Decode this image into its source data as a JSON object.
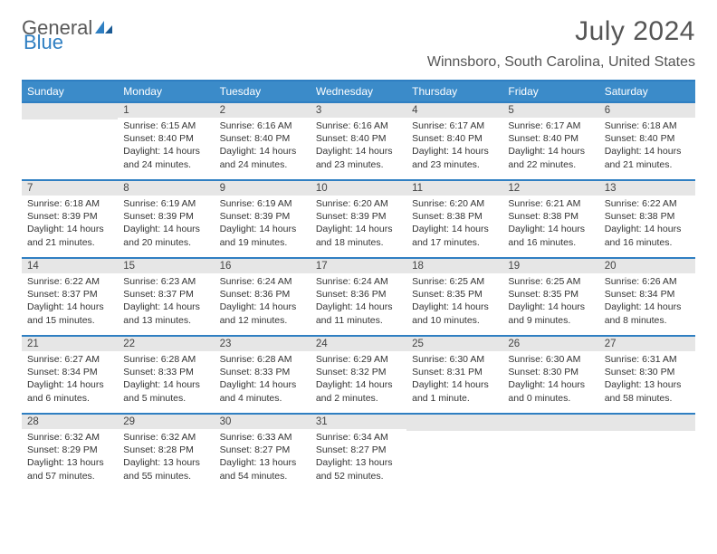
{
  "logo": {
    "text_gray": "General",
    "text_blue": "Blue"
  },
  "header": {
    "month_title": "July 2024",
    "location": "Winnsboro, South Carolina, United States"
  },
  "style": {
    "header_bg": "#3b8bc9",
    "header_border": "#2f7fc2",
    "daynum_bg": "#e6e6e6",
    "text_color": "#333333",
    "title_color": "#555555"
  },
  "weekdays": [
    "Sunday",
    "Monday",
    "Tuesday",
    "Wednesday",
    "Thursday",
    "Friday",
    "Saturday"
  ],
  "weeks": [
    [
      {
        "n": "",
        "sunrise": "",
        "sunset": "",
        "daylight": ""
      },
      {
        "n": "1",
        "sunrise": "6:15 AM",
        "sunset": "8:40 PM",
        "daylight": "14 hours and 24 minutes."
      },
      {
        "n": "2",
        "sunrise": "6:16 AM",
        "sunset": "8:40 PM",
        "daylight": "14 hours and 24 minutes."
      },
      {
        "n": "3",
        "sunrise": "6:16 AM",
        "sunset": "8:40 PM",
        "daylight": "14 hours and 23 minutes."
      },
      {
        "n": "4",
        "sunrise": "6:17 AM",
        "sunset": "8:40 PM",
        "daylight": "14 hours and 23 minutes."
      },
      {
        "n": "5",
        "sunrise": "6:17 AM",
        "sunset": "8:40 PM",
        "daylight": "14 hours and 22 minutes."
      },
      {
        "n": "6",
        "sunrise": "6:18 AM",
        "sunset": "8:40 PM",
        "daylight": "14 hours and 21 minutes."
      }
    ],
    [
      {
        "n": "7",
        "sunrise": "6:18 AM",
        "sunset": "8:39 PM",
        "daylight": "14 hours and 21 minutes."
      },
      {
        "n": "8",
        "sunrise": "6:19 AM",
        "sunset": "8:39 PM",
        "daylight": "14 hours and 20 minutes."
      },
      {
        "n": "9",
        "sunrise": "6:19 AM",
        "sunset": "8:39 PM",
        "daylight": "14 hours and 19 minutes."
      },
      {
        "n": "10",
        "sunrise": "6:20 AM",
        "sunset": "8:39 PM",
        "daylight": "14 hours and 18 minutes."
      },
      {
        "n": "11",
        "sunrise": "6:20 AM",
        "sunset": "8:38 PM",
        "daylight": "14 hours and 17 minutes."
      },
      {
        "n": "12",
        "sunrise": "6:21 AM",
        "sunset": "8:38 PM",
        "daylight": "14 hours and 16 minutes."
      },
      {
        "n": "13",
        "sunrise": "6:22 AM",
        "sunset": "8:38 PM",
        "daylight": "14 hours and 16 minutes."
      }
    ],
    [
      {
        "n": "14",
        "sunrise": "6:22 AM",
        "sunset": "8:37 PM",
        "daylight": "14 hours and 15 minutes."
      },
      {
        "n": "15",
        "sunrise": "6:23 AM",
        "sunset": "8:37 PM",
        "daylight": "14 hours and 13 minutes."
      },
      {
        "n": "16",
        "sunrise": "6:24 AM",
        "sunset": "8:36 PM",
        "daylight": "14 hours and 12 minutes."
      },
      {
        "n": "17",
        "sunrise": "6:24 AM",
        "sunset": "8:36 PM",
        "daylight": "14 hours and 11 minutes."
      },
      {
        "n": "18",
        "sunrise": "6:25 AM",
        "sunset": "8:35 PM",
        "daylight": "14 hours and 10 minutes."
      },
      {
        "n": "19",
        "sunrise": "6:25 AM",
        "sunset": "8:35 PM",
        "daylight": "14 hours and 9 minutes."
      },
      {
        "n": "20",
        "sunrise": "6:26 AM",
        "sunset": "8:34 PM",
        "daylight": "14 hours and 8 minutes."
      }
    ],
    [
      {
        "n": "21",
        "sunrise": "6:27 AM",
        "sunset": "8:34 PM",
        "daylight": "14 hours and 6 minutes."
      },
      {
        "n": "22",
        "sunrise": "6:28 AM",
        "sunset": "8:33 PM",
        "daylight": "14 hours and 5 minutes."
      },
      {
        "n": "23",
        "sunrise": "6:28 AM",
        "sunset": "8:33 PM",
        "daylight": "14 hours and 4 minutes."
      },
      {
        "n": "24",
        "sunrise": "6:29 AM",
        "sunset": "8:32 PM",
        "daylight": "14 hours and 2 minutes."
      },
      {
        "n": "25",
        "sunrise": "6:30 AM",
        "sunset": "8:31 PM",
        "daylight": "14 hours and 1 minute."
      },
      {
        "n": "26",
        "sunrise": "6:30 AM",
        "sunset": "8:30 PM",
        "daylight": "14 hours and 0 minutes."
      },
      {
        "n": "27",
        "sunrise": "6:31 AM",
        "sunset": "8:30 PM",
        "daylight": "13 hours and 58 minutes."
      }
    ],
    [
      {
        "n": "28",
        "sunrise": "6:32 AM",
        "sunset": "8:29 PM",
        "daylight": "13 hours and 57 minutes."
      },
      {
        "n": "29",
        "sunrise": "6:32 AM",
        "sunset": "8:28 PM",
        "daylight": "13 hours and 55 minutes."
      },
      {
        "n": "30",
        "sunrise": "6:33 AM",
        "sunset": "8:27 PM",
        "daylight": "13 hours and 54 minutes."
      },
      {
        "n": "31",
        "sunrise": "6:34 AM",
        "sunset": "8:27 PM",
        "daylight": "13 hours and 52 minutes."
      },
      {
        "n": "",
        "sunrise": "",
        "sunset": "",
        "daylight": ""
      },
      {
        "n": "",
        "sunrise": "",
        "sunset": "",
        "daylight": ""
      },
      {
        "n": "",
        "sunrise": "",
        "sunset": "",
        "daylight": ""
      }
    ]
  ],
  "labels": {
    "sunrise_prefix": "Sunrise: ",
    "sunset_prefix": "Sunset: ",
    "daylight_prefix": "Daylight: "
  }
}
